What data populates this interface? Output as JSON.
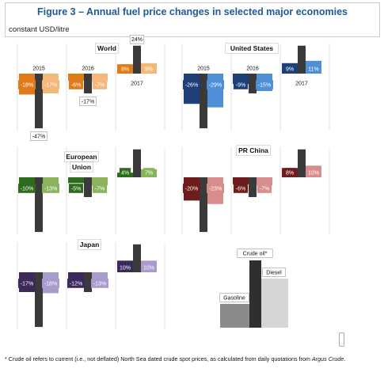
{
  "figure": {
    "title": "Figure 3 – Annual fuel price changes in selected major economies",
    "unit_label": "constant USD/litre",
    "footnote_prefix": "* Crude oil refers to current (i.e., not deflated) North Sea dated crude spot prices, as calculated from daily quotations from ",
    "footnote_source": "Argus Crude",
    "footnote_suffix": "."
  },
  "colors": {
    "crude": "#3a3a3a",
    "World": [
      "#e07b1a",
      "#f5b87a"
    ],
    "United States": [
      "#1f3f78",
      "#4f8fd6"
    ],
    "European Union": [
      "#2e6b1c",
      "#8bb35e"
    ],
    "PR China": [
      "#6e1c1c",
      "#d98c8c"
    ],
    "Japan": [
      "#3b2a5a",
      "#a99bcc"
    ],
    "legend": [
      "#8a8a8a",
      "#2f2f2f",
      "#d6d6d6"
    ]
  },
  "chart_data": {
    "type": "bar",
    "categories": [
      "2015",
      "2016",
      "2017"
    ],
    "series_types": [
      "Gasoline",
      "Crude oil*",
      "Diesel"
    ],
    "panels": [
      {
        "name": "World",
        "gasoline": [
          -18,
          -6,
          8
        ],
        "diesel": [
          -17,
          -7,
          9
        ],
        "crude": [
          -47,
          -17,
          24
        ]
      },
      {
        "name": "United States",
        "gasoline": [
          -26,
          -9,
          9
        ],
        "diesel": [
          -29,
          -15,
          11
        ],
        "crude": [
          -47,
          -17,
          24
        ]
      },
      {
        "name": "European Union",
        "gasoline": [
          -10,
          -5,
          4
        ],
        "diesel": [
          -13,
          -7,
          7
        ],
        "crude": [
          -47,
          -17,
          24
        ]
      },
      {
        "name": "PR China",
        "gasoline": [
          -20,
          -6,
          8
        ],
        "diesel": [
          -23,
          -7,
          10
        ],
        "crude": [
          -47,
          -17,
          24
        ]
      },
      {
        "name": "Japan",
        "gasoline": [
          -17,
          -12,
          10
        ],
        "diesel": [
          -18,
          -13,
          10
        ],
        "crude": [
          -47,
          -17,
          24
        ]
      }
    ],
    "legend": {
      "labels": [
        "Gasoline",
        "Crude oil*",
        "Diesel"
      ]
    }
  }
}
